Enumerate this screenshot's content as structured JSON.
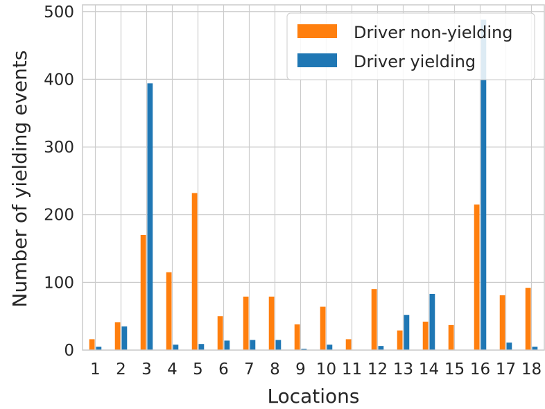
{
  "chart_data": {
    "type": "bar",
    "xlabel": "Locations",
    "ylabel": "Number of yielding events",
    "ylim": [
      0,
      510
    ],
    "yticks": [
      0,
      100,
      200,
      300,
      400,
      500
    ],
    "categories": [
      "1",
      "2",
      "3",
      "4",
      "5",
      "6",
      "7",
      "8",
      "9",
      "10",
      "11",
      "12",
      "13",
      "14",
      "15",
      "16",
      "17",
      "18"
    ],
    "series": [
      {
        "name": "Driver non-yielding",
        "color": "#ff7f0e",
        "values": [
          16,
          41,
          170,
          115,
          232,
          50,
          79,
          79,
          38,
          64,
          16,
          90,
          29,
          42,
          37,
          215,
          81,
          92
        ]
      },
      {
        "name": "Driver yielding",
        "color": "#1f77b4",
        "values": [
          5,
          35,
          394,
          8,
          9,
          14,
          15,
          15,
          2,
          8,
          0,
          6,
          52,
          83,
          0,
          488,
          11,
          5
        ]
      }
    ],
    "grid": true,
    "legend_position": "top-right"
  }
}
